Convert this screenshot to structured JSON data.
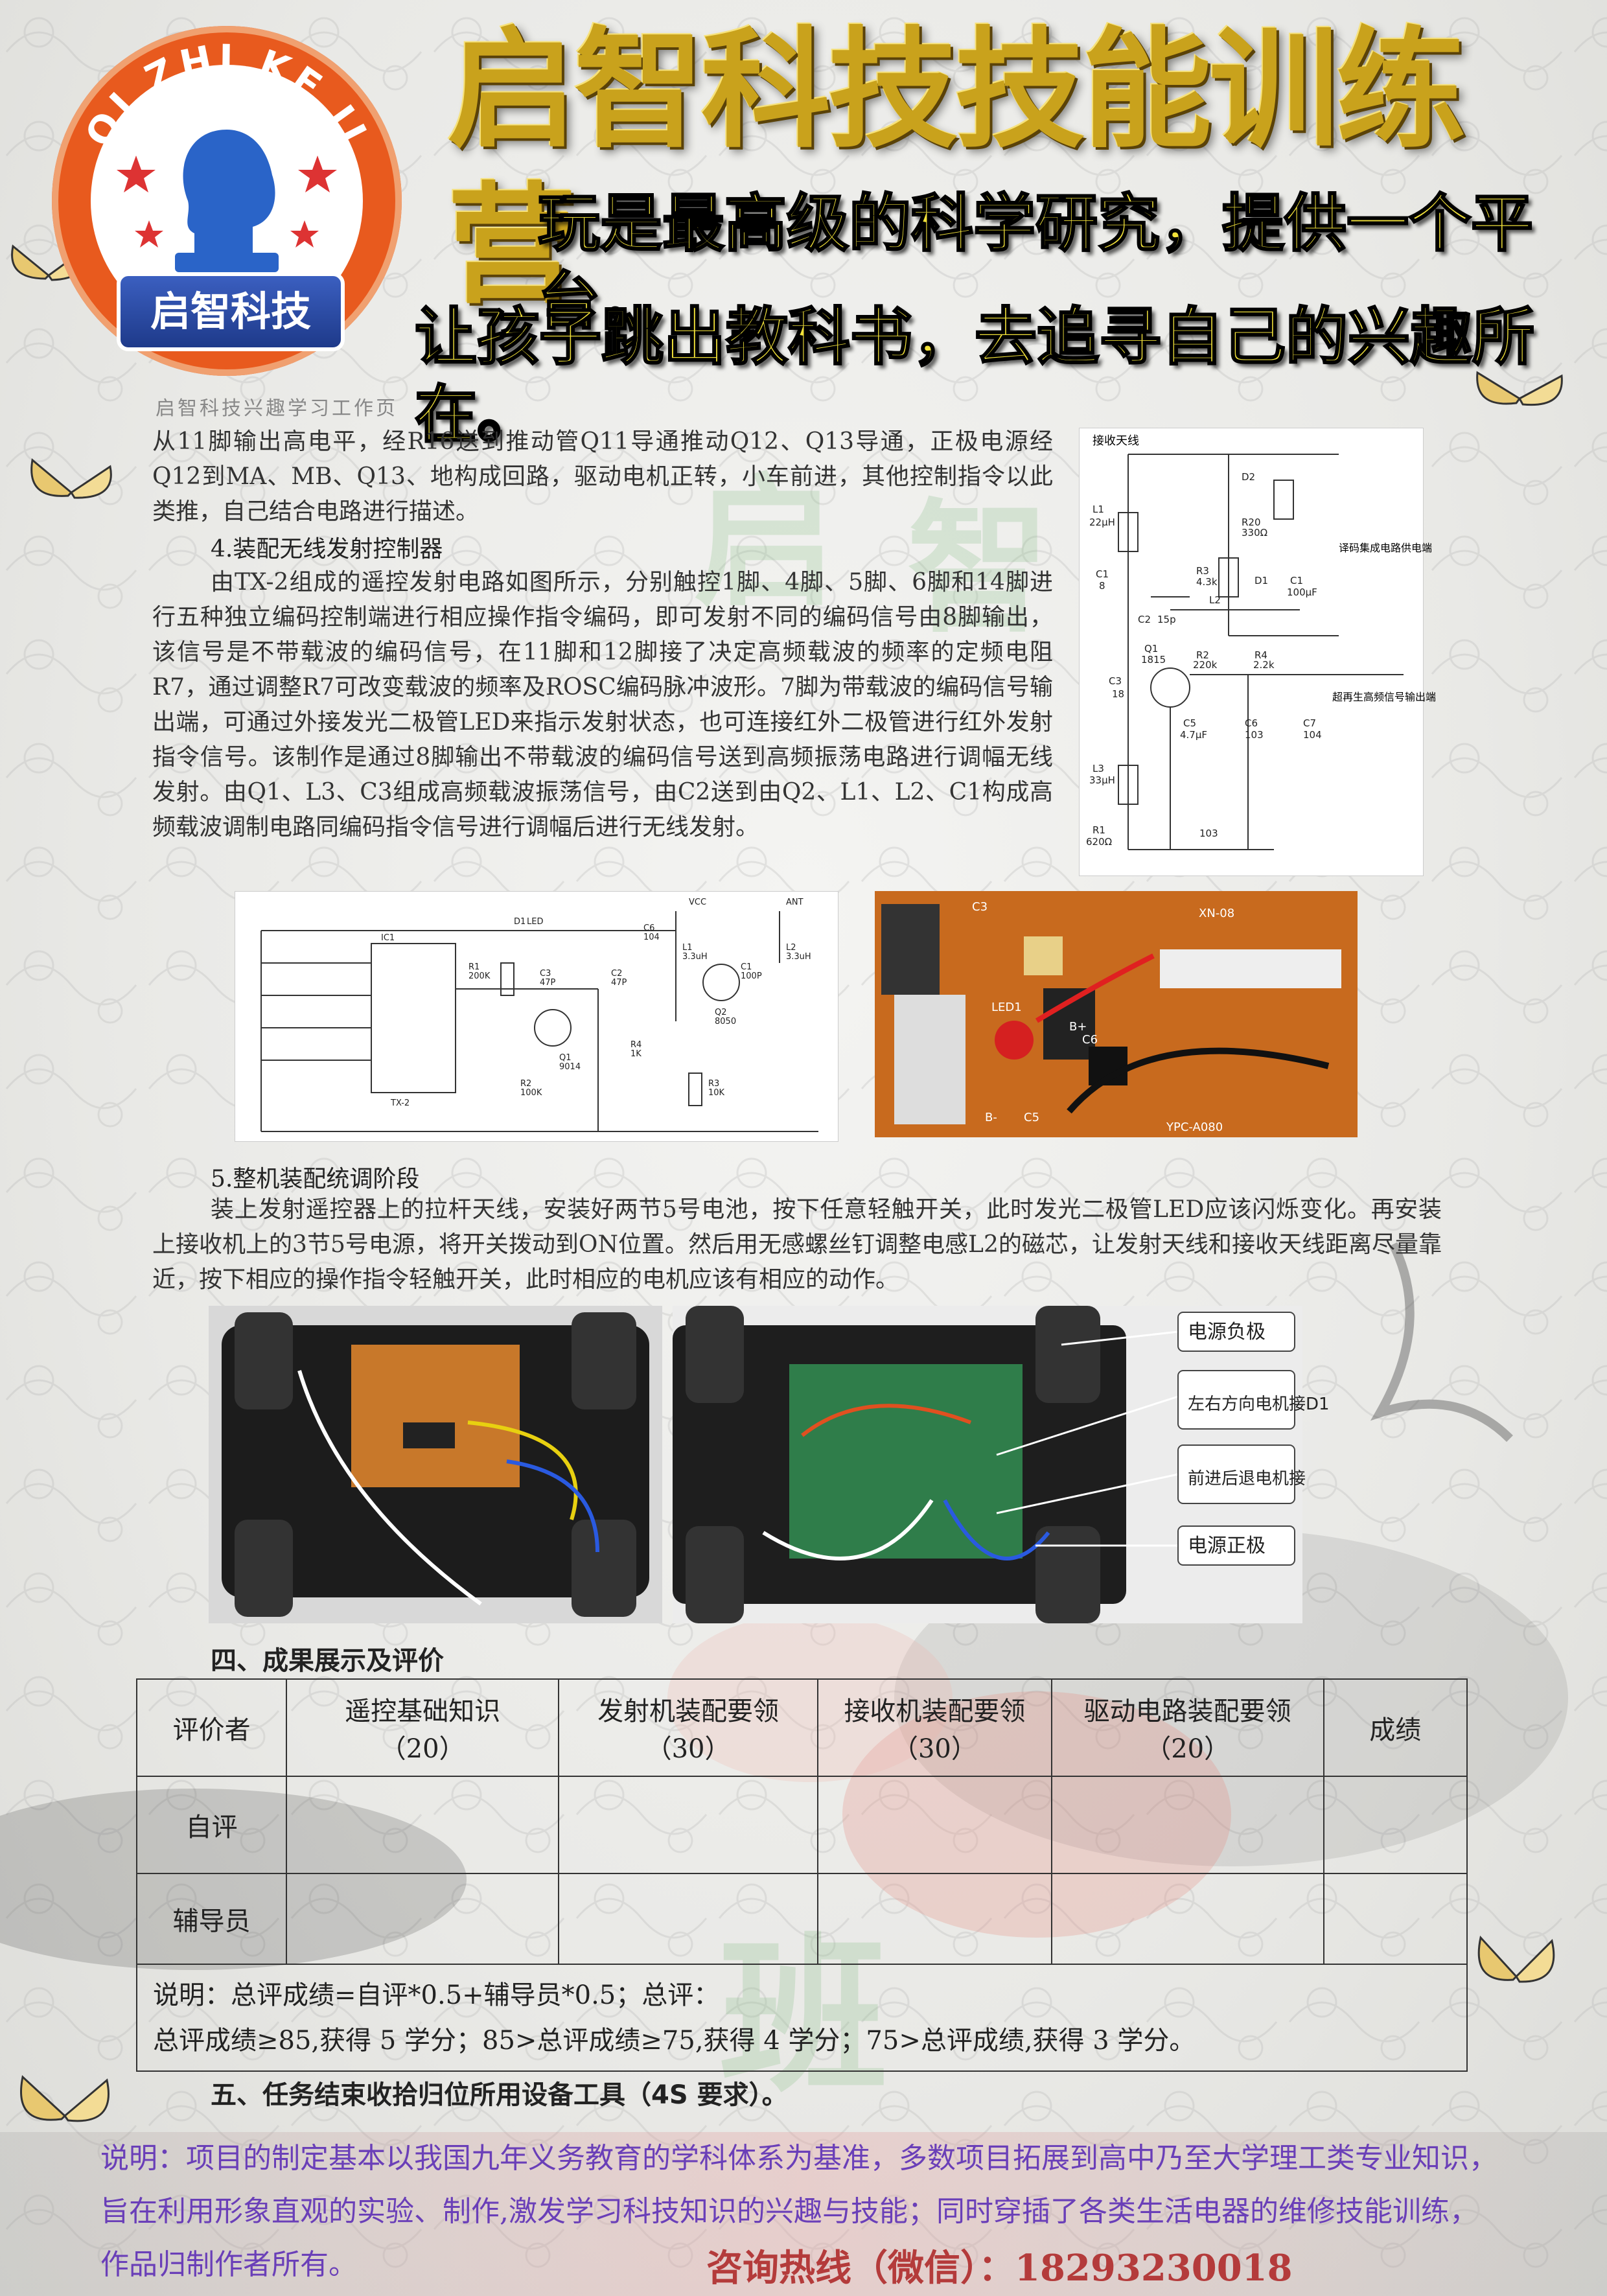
{
  "header": {
    "logo_ring_text": "QI ZHI KE JI",
    "logo_banner": "启智科技",
    "title": "启智科技技能训练营",
    "slogan_line1": "玩是最高级的科学研究，提供一个平台，",
    "slogan_line2": "让孩子跳出教科书，去追寻自己的兴趣所在。"
  },
  "page_head": "启智科技兴趣学习工作页",
  "content": {
    "para1": "从11脚输出高电平，经R16送到推动管Q11导通推动Q12、Q13导通，正极电源经Q12到MA、MB、Q13、地构成回路，驱动电机正转，小车前进，其他控制指令以此类推，自己结合电路进行描述。",
    "section4_title": "4.装配无线发射控制器",
    "para2": "由TX-2组成的遥控发射电路如图所示，分别触控1脚、4脚、5脚、6脚和14脚进行五种独立编码控制端进行相应操作指令编码，即可发射不同的编码信号由8脚输出，该信号是不带载波的编码信号，在11脚和12脚接了决定高频载波的频率的定频电阻R7，通过调整R7可改变载波的频率及ROSC编码脉冲波形。7脚为带载波的编码信号输出端，可通过外接发光二极管LED来指示发射状态，也可连接红外二极管进行红外发射指令信号。该制作是通过8脚输出不带载波的编码信号送到高频振荡电路进行调幅无线发射。由Q1、L3、C3组成高频载波振荡信号，由C2送到由Q2、L1、L2、C1构成高频载波调制电路同编码指令信号进行调幅后进行无线发射。",
    "section5_title": "5.整机装配统调阶段",
    "para3": "装上发射遥控器上的拉杆天线，安装好两节5号电池，按下任意轻触开关，此时发光二极管LED应该闪烁变化。再安装上接收机上的3节5号电源，将开关拨动到ON位置。然后用无感螺丝钉调整电感L2的磁芯，让发射天线和接收天线距离尽量靠近，按下相应的操作指令轻触开关，此时相应的电机应该有相应的动作。"
  },
  "circuit1": {
    "antenna": "接收天线",
    "labels": [
      "L1",
      "22μH",
      "C1",
      "8",
      "D2",
      "R20",
      "330Ω",
      "R3",
      "4.3k",
      "D1",
      "C1",
      "100μF",
      "L2",
      "C2",
      "15p",
      "Q1",
      "1815",
      "R2",
      "220k",
      "R4",
      "2.2k",
      "C3",
      "18",
      "C5",
      "4.7μF",
      "C6",
      "103",
      "C7",
      "104",
      "L3",
      "33μH",
      "R1",
      "620Ω",
      "103"
    ],
    "note1": "译码集成电路供电端",
    "note2": "超再生高频信号输出端"
  },
  "circuit2": {
    "labels": [
      "ANT",
      "VCC",
      "L1",
      "3.3uH",
      "L2",
      "3.3uH",
      "C6",
      "104",
      "C1",
      "100P",
      "C2",
      "47P",
      "C3",
      "47P",
      "Q1",
      "9014",
      "Q2",
      "8050",
      "R1",
      "200K",
      "R2",
      "100K",
      "R3",
      "10K",
      "R4",
      "1K",
      "D1",
      "LED",
      "IC1",
      "TX-2"
    ]
  },
  "board_photo": {
    "labels": [
      "XN-08",
      "LED1",
      "B+",
      "B-",
      "C5",
      "C6",
      "C3",
      "YPC-A080"
    ]
  },
  "car_photo_labels": [
    "电源负极",
    "左右方向电机接D1",
    "前进后退电机接",
    "电源正极"
  ],
  "section_four": "四、成果展示及评价",
  "eval_table": {
    "headers": [
      {
        "name": "评价者",
        "score": ""
      },
      {
        "name": "遥控基础知识",
        "score": "（20）"
      },
      {
        "name": "发射机装配要领",
        "score": "（30）"
      },
      {
        "name": "接收机装配要领",
        "score": "（30）"
      },
      {
        "name": "驱动电路装配要领",
        "score": "（20）"
      },
      {
        "name": "成绩",
        "score": ""
      }
    ],
    "rows": [
      "自评",
      "辅导员"
    ],
    "note_line1": "说明：总评成绩=自评*0.5+辅导员*0.5；总评：",
    "note_line2": "总评成绩≥85,获得 5 学分；85>总评成绩≥75,获得 4 学分；75>总评成绩,获得 3 学分。"
  },
  "section_five": "五、任务结束收拾归位所用设备工具（4S 要求）。",
  "footer": {
    "text": "说明：项目的制定基本以我国九年义务教育的学科体系为基准，多数项目拓展到高中乃至大学理工类专业知识，旨在利用形象直观的实验、制作,激发学习科技知识的兴趣与技能；同时穿插了各类生活电器的维修技能训练，作品归制作者所有。",
    "hotline": "咨询热线（微信）：18293230018"
  },
  "colors": {
    "logo_orange": "#e85a1e",
    "title_gold": "#c9a21c",
    "slogan_yellow": "#f2e23a",
    "footer_purple": "#6a3fb8",
    "hotline_red": "#b43b3b"
  }
}
